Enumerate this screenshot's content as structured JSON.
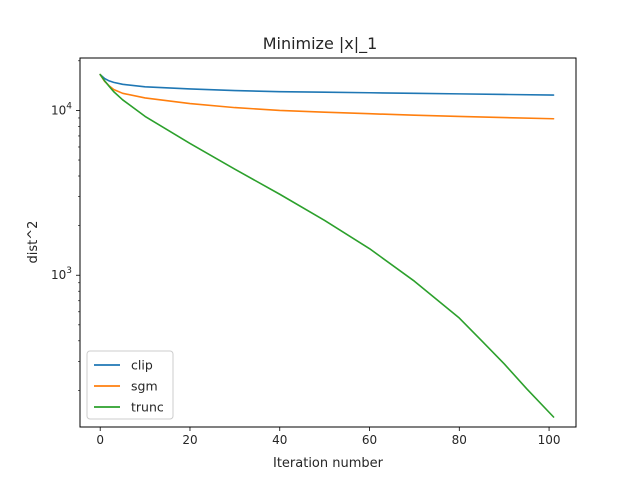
{
  "chart_data": {
    "type": "line",
    "title": "Minimize |x|_1",
    "xlabel": "Iteration number",
    "ylabel": "dist^2",
    "xlim": [
      -4.5,
      106
    ],
    "ylim": [
      120,
      20800
    ],
    "yscale": "log",
    "grid": false,
    "legend_position": "lower left",
    "x_ticks": [
      0,
      20,
      40,
      60,
      80,
      100
    ],
    "x_tick_labels": [
      "0",
      "20",
      "40",
      "60",
      "80",
      "100"
    ],
    "y_major_ticks": [
      1000,
      10000
    ],
    "y_tick_labels": [
      {
        "base": "10",
        "exp": "3"
      },
      {
        "base": "10",
        "exp": "4"
      }
    ],
    "y_minor_ticks": [
      200,
      300,
      400,
      500,
      600,
      700,
      800,
      900,
      2000,
      3000,
      4000,
      5000,
      6000,
      7000,
      8000,
      9000,
      20000
    ],
    "series": [
      {
        "name": "clip",
        "color": "#1f77b4",
        "x": [
          0,
          1,
          2,
          3,
          5,
          10,
          20,
          30,
          40,
          50,
          60,
          70,
          80,
          90,
          101
        ],
        "y": [
          16500,
          15600,
          15100,
          14800,
          14400,
          13900,
          13500,
          13200,
          13000,
          12900,
          12800,
          12700,
          12600,
          12500,
          12400
        ]
      },
      {
        "name": "sgm",
        "color": "#ff7f0e",
        "x": [
          0,
          1,
          2,
          3,
          5,
          10,
          20,
          30,
          40,
          50,
          60,
          70,
          80,
          90,
          101
        ],
        "y": [
          16500,
          15000,
          14100,
          13400,
          12700,
          11900,
          11000,
          10400,
          10000,
          9750,
          9550,
          9350,
          9200,
          9050,
          8900
        ]
      },
      {
        "name": "trunc",
        "color": "#2ca02c",
        "x": [
          0,
          1,
          2,
          3,
          5,
          10,
          20,
          30,
          40,
          50,
          60,
          70,
          80,
          85,
          90,
          95,
          101
        ],
        "y": [
          16500,
          15100,
          14000,
          13000,
          11600,
          9200,
          6300,
          4400,
          3100,
          2150,
          1450,
          920,
          550,
          400,
          290,
          205,
          138
        ]
      }
    ]
  }
}
